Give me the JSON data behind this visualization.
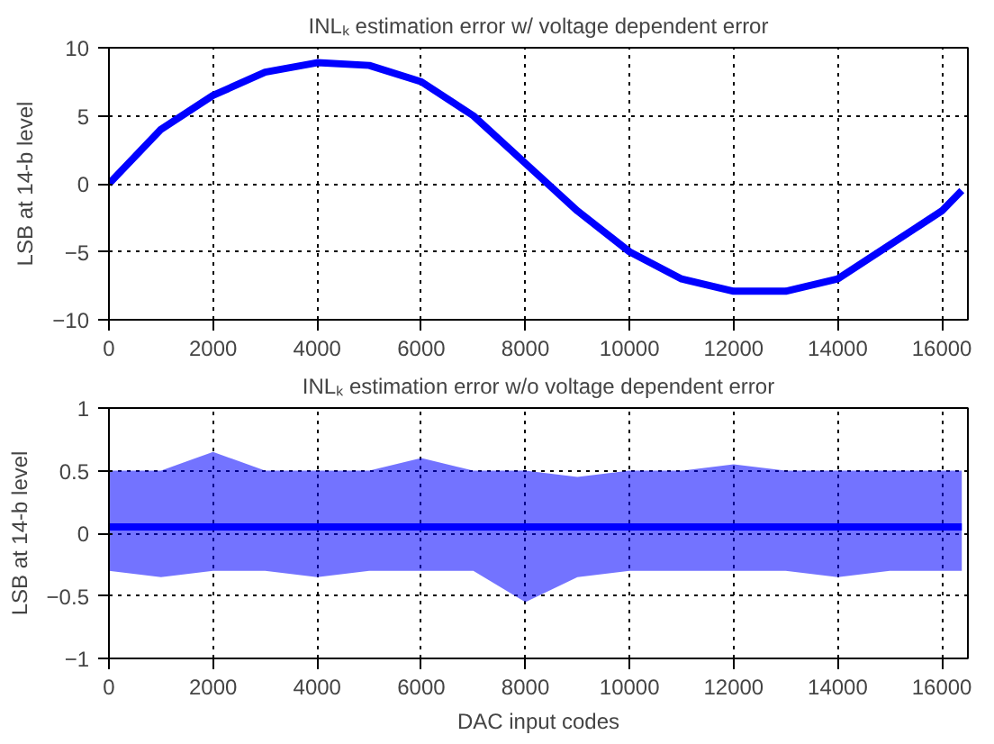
{
  "chart_data": [
    {
      "type": "line",
      "title": "INLₖ estimation error w/ voltage dependent error",
      "ylabel": "LSB at 14-b level",
      "x": [
        0,
        1000,
        2000,
        3000,
        4000,
        5000,
        6000,
        7000,
        8000,
        9000,
        10000,
        11000,
        12000,
        13000,
        14000,
        15000,
        16000,
        16383
      ],
      "series": [
        {
          "color": "#0000ff",
          "values": [
            0,
            4,
            6.5,
            8.2,
            8.9,
            8.7,
            7.5,
            5,
            1.5,
            -2,
            -5,
            -7,
            -7.9,
            -7.9,
            -7,
            -4.5,
            -2,
            -0.5
          ]
        }
      ],
      "xlim": [
        0,
        16500
      ],
      "xticks": [
        0,
        2000,
        4000,
        6000,
        8000,
        10000,
        12000,
        14000,
        16000
      ],
      "ylim": [
        -10,
        10
      ],
      "yticks": [
        -10,
        -5,
        0,
        5,
        10
      ],
      "grid": true,
      "line_style": "solid"
    },
    {
      "type": "line",
      "title": "INLₖ estimation error w/o voltage dependent error",
      "xlabel": "DAC input codes",
      "ylabel": "LSB at 14-b level",
      "x": [
        0,
        1000,
        2000,
        3000,
        4000,
        5000,
        6000,
        7000,
        8000,
        9000,
        10000,
        11000,
        12000,
        13000,
        14000,
        15000,
        16000,
        16383
      ],
      "series": [
        {
          "color": "#0000ff",
          "values": [
            0.05,
            0.05,
            0.05,
            0.05,
            0.05,
            0.05,
            0.05,
            0.05,
            0.05,
            0.05,
            0.05,
            0.05,
            0.05,
            0.05,
            0.05,
            0.05,
            0.05,
            0.05
          ],
          "lower": [
            -0.3,
            -0.35,
            -0.3,
            -0.3,
            -0.35,
            -0.3,
            -0.3,
            -0.3,
            -0.55,
            -0.35,
            -0.3,
            -0.3,
            -0.3,
            -0.3,
            -0.35,
            -0.3,
            -0.3,
            -0.3
          ],
          "upper": [
            0.5,
            0.5,
            0.65,
            0.5,
            0.5,
            0.5,
            0.6,
            0.5,
            0.5,
            0.45,
            0.5,
            0.5,
            0.55,
            0.5,
            0.5,
            0.5,
            0.5,
            0.5
          ]
        }
      ],
      "xlim": [
        0,
        16500
      ],
      "xticks": [
        0,
        2000,
        4000,
        6000,
        8000,
        10000,
        12000,
        14000,
        16000
      ],
      "ylim": [
        -1,
        1
      ],
      "yticks": [
        -1,
        -0.5,
        0,
        0.5,
        1
      ],
      "grid": true,
      "line_style": "solid"
    }
  ]
}
